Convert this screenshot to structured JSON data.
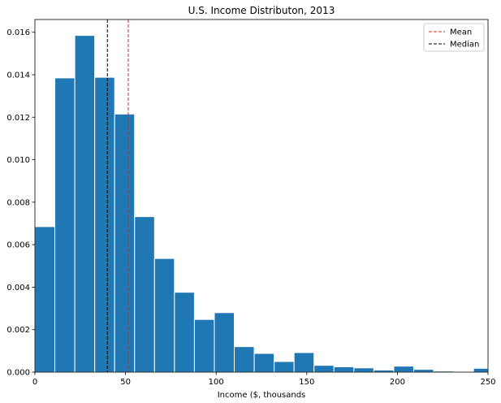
{
  "chart_data": {
    "type": "bar",
    "title": "U.S. Income Distributon, 2013",
    "xlabel": "Income ($, thousands",
    "ylabel": "",
    "xlim": [
      0,
      250
    ],
    "ylim": [
      0,
      0.0166
    ],
    "bin_width": 11,
    "bin_starts": [
      0,
      11,
      22,
      33,
      44,
      55,
      66,
      77,
      88,
      99,
      110,
      121,
      132,
      143,
      154,
      165,
      176,
      187,
      198,
      209,
      220,
      231,
      242
    ],
    "values": [
      0.00685,
      0.01385,
      0.01585,
      0.01388,
      0.01215,
      0.00732,
      0.00535,
      0.00376,
      0.00248,
      0.0028,
      0.0012,
      0.00088,
      0.0005,
      0.00092,
      0.00032,
      0.00025,
      0.0002,
      0.0001,
      0.00028,
      0.00013,
      5e-05,
      0.0,
      0.00018
    ],
    "xticks": [
      0,
      50,
      100,
      150,
      200,
      250
    ],
    "xtick_labels": [
      "0",
      "50",
      "100",
      "150",
      "200",
      "250"
    ],
    "yticks": [
      0,
      0.002,
      0.004,
      0.006,
      0.008,
      0.01,
      0.012,
      0.014,
      0.016
    ],
    "ytick_labels": [
      "0.000",
      "0.002",
      "0.004",
      "0.006",
      "0.008",
      "0.010",
      "0.012",
      "0.014",
      "0.016"
    ],
    "bar_color": "#1f77b4",
    "reference_lines": [
      {
        "name": "Mean",
        "x": 51.5,
        "color": "#d62728"
      },
      {
        "name": "Median",
        "x": 40,
        "color": "#000000"
      }
    ],
    "legend_position": "top-right",
    "grid": false
  }
}
